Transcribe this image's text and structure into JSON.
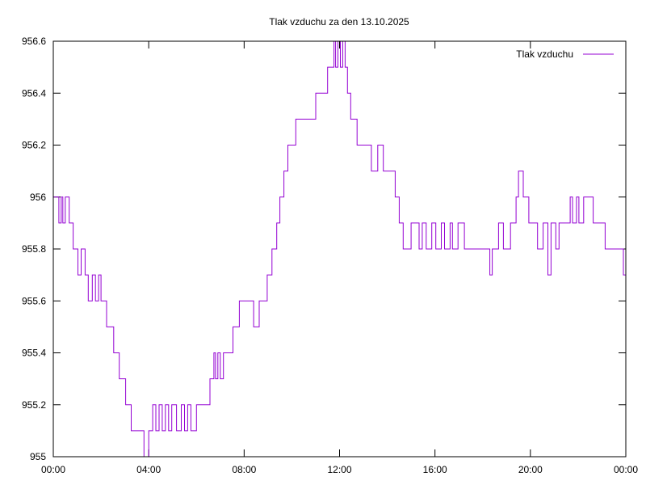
{
  "chart_data": {
    "type": "line",
    "title": "Tlak vzduchu za den 13.10.2025",
    "xlabel": "",
    "ylabel": "",
    "xlim": [
      0,
      1440
    ],
    "ylim": [
      955,
      956.6
    ],
    "x_unit": "minutes of day",
    "x_ticks": [
      {
        "value": 0,
        "label": "00:00"
      },
      {
        "value": 240,
        "label": "04:00"
      },
      {
        "value": 480,
        "label": "08:00"
      },
      {
        "value": 720,
        "label": "12:00"
      },
      {
        "value": 960,
        "label": "16:00"
      },
      {
        "value": 1200,
        "label": "20:00"
      },
      {
        "value": 1440,
        "label": "00:00"
      }
    ],
    "y_ticks": [
      {
        "value": 955,
        "label": "955"
      },
      {
        "value": 955.2,
        "label": "955.2"
      },
      {
        "value": 955.4,
        "label": "955.4"
      },
      {
        "value": 955.6,
        "label": "955.6"
      },
      {
        "value": 955.8,
        "label": "955.8"
      },
      {
        "value": 956,
        "label": "956"
      },
      {
        "value": 956.2,
        "label": "956.2"
      },
      {
        "value": 956.4,
        "label": "956.4"
      },
      {
        "value": 956.6,
        "label": "956.6"
      }
    ],
    "grid": false,
    "legend_position": "top-right",
    "series": [
      {
        "name": "Tlak vzduchu",
        "color": "#9400d3",
        "step": true,
        "points": [
          [
            0,
            956.0
          ],
          [
            14,
            955.9
          ],
          [
            20,
            956.0
          ],
          [
            24,
            955.9
          ],
          [
            30,
            956.0
          ],
          [
            40,
            955.9
          ],
          [
            50,
            955.8
          ],
          [
            62,
            955.7
          ],
          [
            70,
            955.8
          ],
          [
            80,
            955.7
          ],
          [
            88,
            955.6
          ],
          [
            98,
            955.7
          ],
          [
            106,
            955.6
          ],
          [
            114,
            955.7
          ],
          [
            120,
            955.6
          ],
          [
            134,
            955.5
          ],
          [
            152,
            955.4
          ],
          [
            166,
            955.3
          ],
          [
            182,
            955.2
          ],
          [
            196,
            955.1
          ],
          [
            228,
            955.0
          ],
          [
            240,
            955.1
          ],
          [
            250,
            955.2
          ],
          [
            258,
            955.1
          ],
          [
            266,
            955.2
          ],
          [
            274,
            955.1
          ],
          [
            282,
            955.2
          ],
          [
            290,
            955.1
          ],
          [
            298,
            955.2
          ],
          [
            310,
            955.1
          ],
          [
            322,
            955.2
          ],
          [
            330,
            955.1
          ],
          [
            338,
            955.2
          ],
          [
            346,
            955.1
          ],
          [
            360,
            955.2
          ],
          [
            394,
            955.3
          ],
          [
            404,
            955.4
          ],
          [
            408,
            955.3
          ],
          [
            414,
            955.4
          ],
          [
            420,
            955.3
          ],
          [
            428,
            955.4
          ],
          [
            452,
            955.5
          ],
          [
            468,
            955.6
          ],
          [
            504,
            955.5
          ],
          [
            518,
            955.6
          ],
          [
            538,
            955.7
          ],
          [
            550,
            955.8
          ],
          [
            562,
            955.9
          ],
          [
            570,
            956.0
          ],
          [
            580,
            956.1
          ],
          [
            590,
            956.2
          ],
          [
            610,
            956.3
          ],
          [
            660,
            956.4
          ],
          [
            690,
            956.5
          ],
          [
            706,
            956.6
          ],
          [
            710,
            956.5
          ],
          [
            716,
            956.6
          ],
          [
            722,
            956.5
          ],
          [
            728,
            956.6
          ],
          [
            734,
            956.5
          ],
          [
            740,
            956.4
          ],
          [
            748,
            956.3
          ],
          [
            764,
            956.2
          ],
          [
            800,
            956.1
          ],
          [
            816,
            956.2
          ],
          [
            830,
            956.1
          ],
          [
            860,
            956.0
          ],
          [
            870,
            955.9
          ],
          [
            880,
            955.8
          ],
          [
            900,
            955.9
          ],
          [
            920,
            955.8
          ],
          [
            928,
            955.9
          ],
          [
            938,
            955.8
          ],
          [
            952,
            955.9
          ],
          [
            962,
            955.8
          ],
          [
            976,
            955.9
          ],
          [
            984,
            955.8
          ],
          [
            998,
            955.9
          ],
          [
            1004,
            955.8
          ],
          [
            1018,
            955.9
          ],
          [
            1034,
            955.8
          ],
          [
            1098,
            955.7
          ],
          [
            1104,
            955.8
          ],
          [
            1120,
            955.9
          ],
          [
            1132,
            955.8
          ],
          [
            1150,
            955.9
          ],
          [
            1164,
            956.0
          ],
          [
            1170,
            956.1
          ],
          [
            1182,
            956.0
          ],
          [
            1196,
            955.9
          ],
          [
            1218,
            955.8
          ],
          [
            1232,
            955.9
          ],
          [
            1244,
            955.7
          ],
          [
            1252,
            955.9
          ],
          [
            1264,
            955.8
          ],
          [
            1272,
            955.9
          ],
          [
            1300,
            956.0
          ],
          [
            1306,
            955.9
          ],
          [
            1316,
            956.0
          ],
          [
            1322,
            955.9
          ],
          [
            1334,
            956.0
          ],
          [
            1358,
            955.9
          ],
          [
            1388,
            955.8
          ],
          [
            1422,
            955.8
          ],
          [
            1434,
            955.7
          ],
          [
            1440,
            955.7
          ]
        ]
      }
    ]
  }
}
